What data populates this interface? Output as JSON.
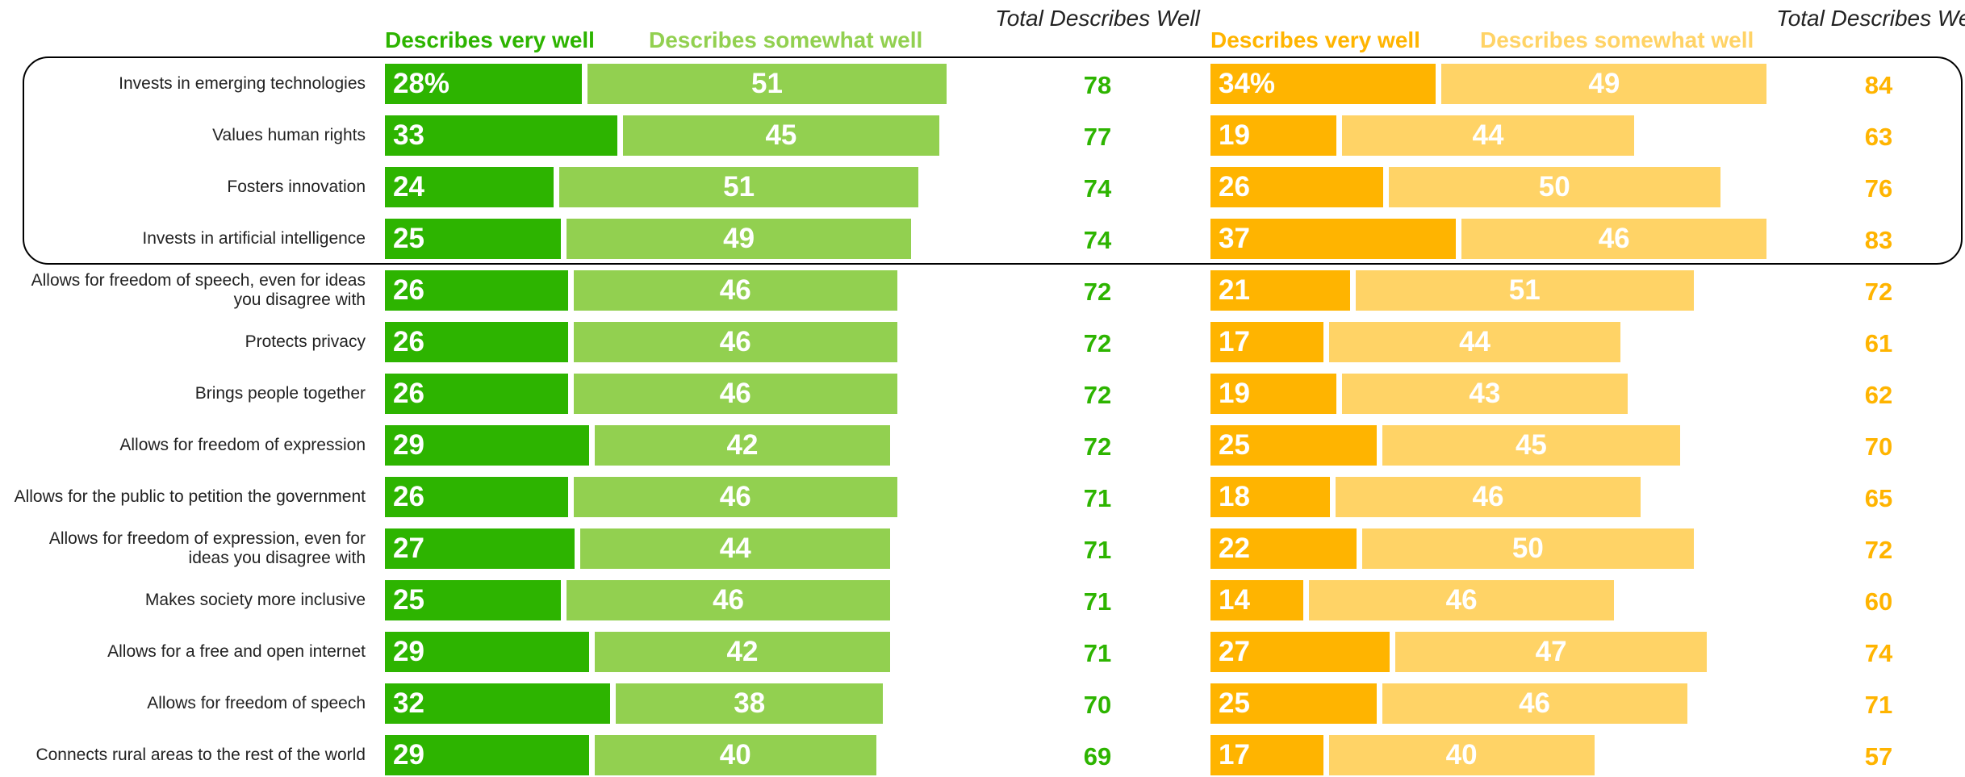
{
  "chart_data": {
    "type": "bar",
    "categories": [
      "Invests in emerging technologies",
      "Values human rights",
      "Fosters innovation",
      "Invests in artificial intelligence",
      "Allows for freedom of speech, even for ideas you disagree with",
      "Protects privacy",
      "Brings people together",
      "Allows for freedom of expression",
      "Allows for the public to petition the government",
      "Allows for freedom of expression, even for ideas you disagree with",
      "Makes society more inclusive",
      "Allows for a free and open internet",
      "Allows for freedom of speech",
      "Connects rural areas to the rest of the world"
    ],
    "groups": [
      {
        "series": [
          {
            "name": "Describes very well",
            "color": "#2db400",
            "values": [
              28,
              33,
              24,
              25,
              26,
              26,
              26,
              29,
              26,
              27,
              25,
              29,
              32,
              29
            ],
            "value_labels": [
              "28%",
              "33",
              "24",
              "25",
              "26",
              "26",
              "26",
              "29",
              "26",
              "27",
              "25",
              "29",
              "32",
              "29"
            ]
          },
          {
            "name": "Describes somewhat well",
            "color": "#92d050",
            "values": [
              51,
              45,
              51,
              49,
              46,
              46,
              46,
              42,
              46,
              44,
              46,
              42,
              38,
              40
            ]
          }
        ],
        "total": {
          "name": "Total Describes Well",
          "color": "#2db400",
          "values": [
            78,
            77,
            74,
            74,
            72,
            72,
            72,
            72,
            71,
            71,
            71,
            71,
            70,
            69
          ]
        }
      },
      {
        "series": [
          {
            "name": "Describes very well",
            "color": "#ffb400",
            "values": [
              34,
              19,
              26,
              37,
              21,
              17,
              19,
              25,
              18,
              22,
              14,
              27,
              25,
              17
            ],
            "value_labels": [
              "34%",
              "19",
              "26",
              "37",
              "21",
              "17",
              "19",
              "25",
              "18",
              "22",
              "14",
              "27",
              "25",
              "17"
            ]
          },
          {
            "name": "Describes somewhat well",
            "color": "#ffd366",
            "values": [
              49,
              44,
              50,
              46,
              51,
              44,
              43,
              45,
              46,
              50,
              46,
              47,
              46,
              40
            ]
          }
        ],
        "total": {
          "name": "Total Describes Well",
          "color": "#ffb400",
          "values": [
            84,
            63,
            76,
            83,
            72,
            61,
            62,
            70,
            65,
            72,
            60,
            74,
            71,
            57
          ]
        }
      }
    ]
  }
}
